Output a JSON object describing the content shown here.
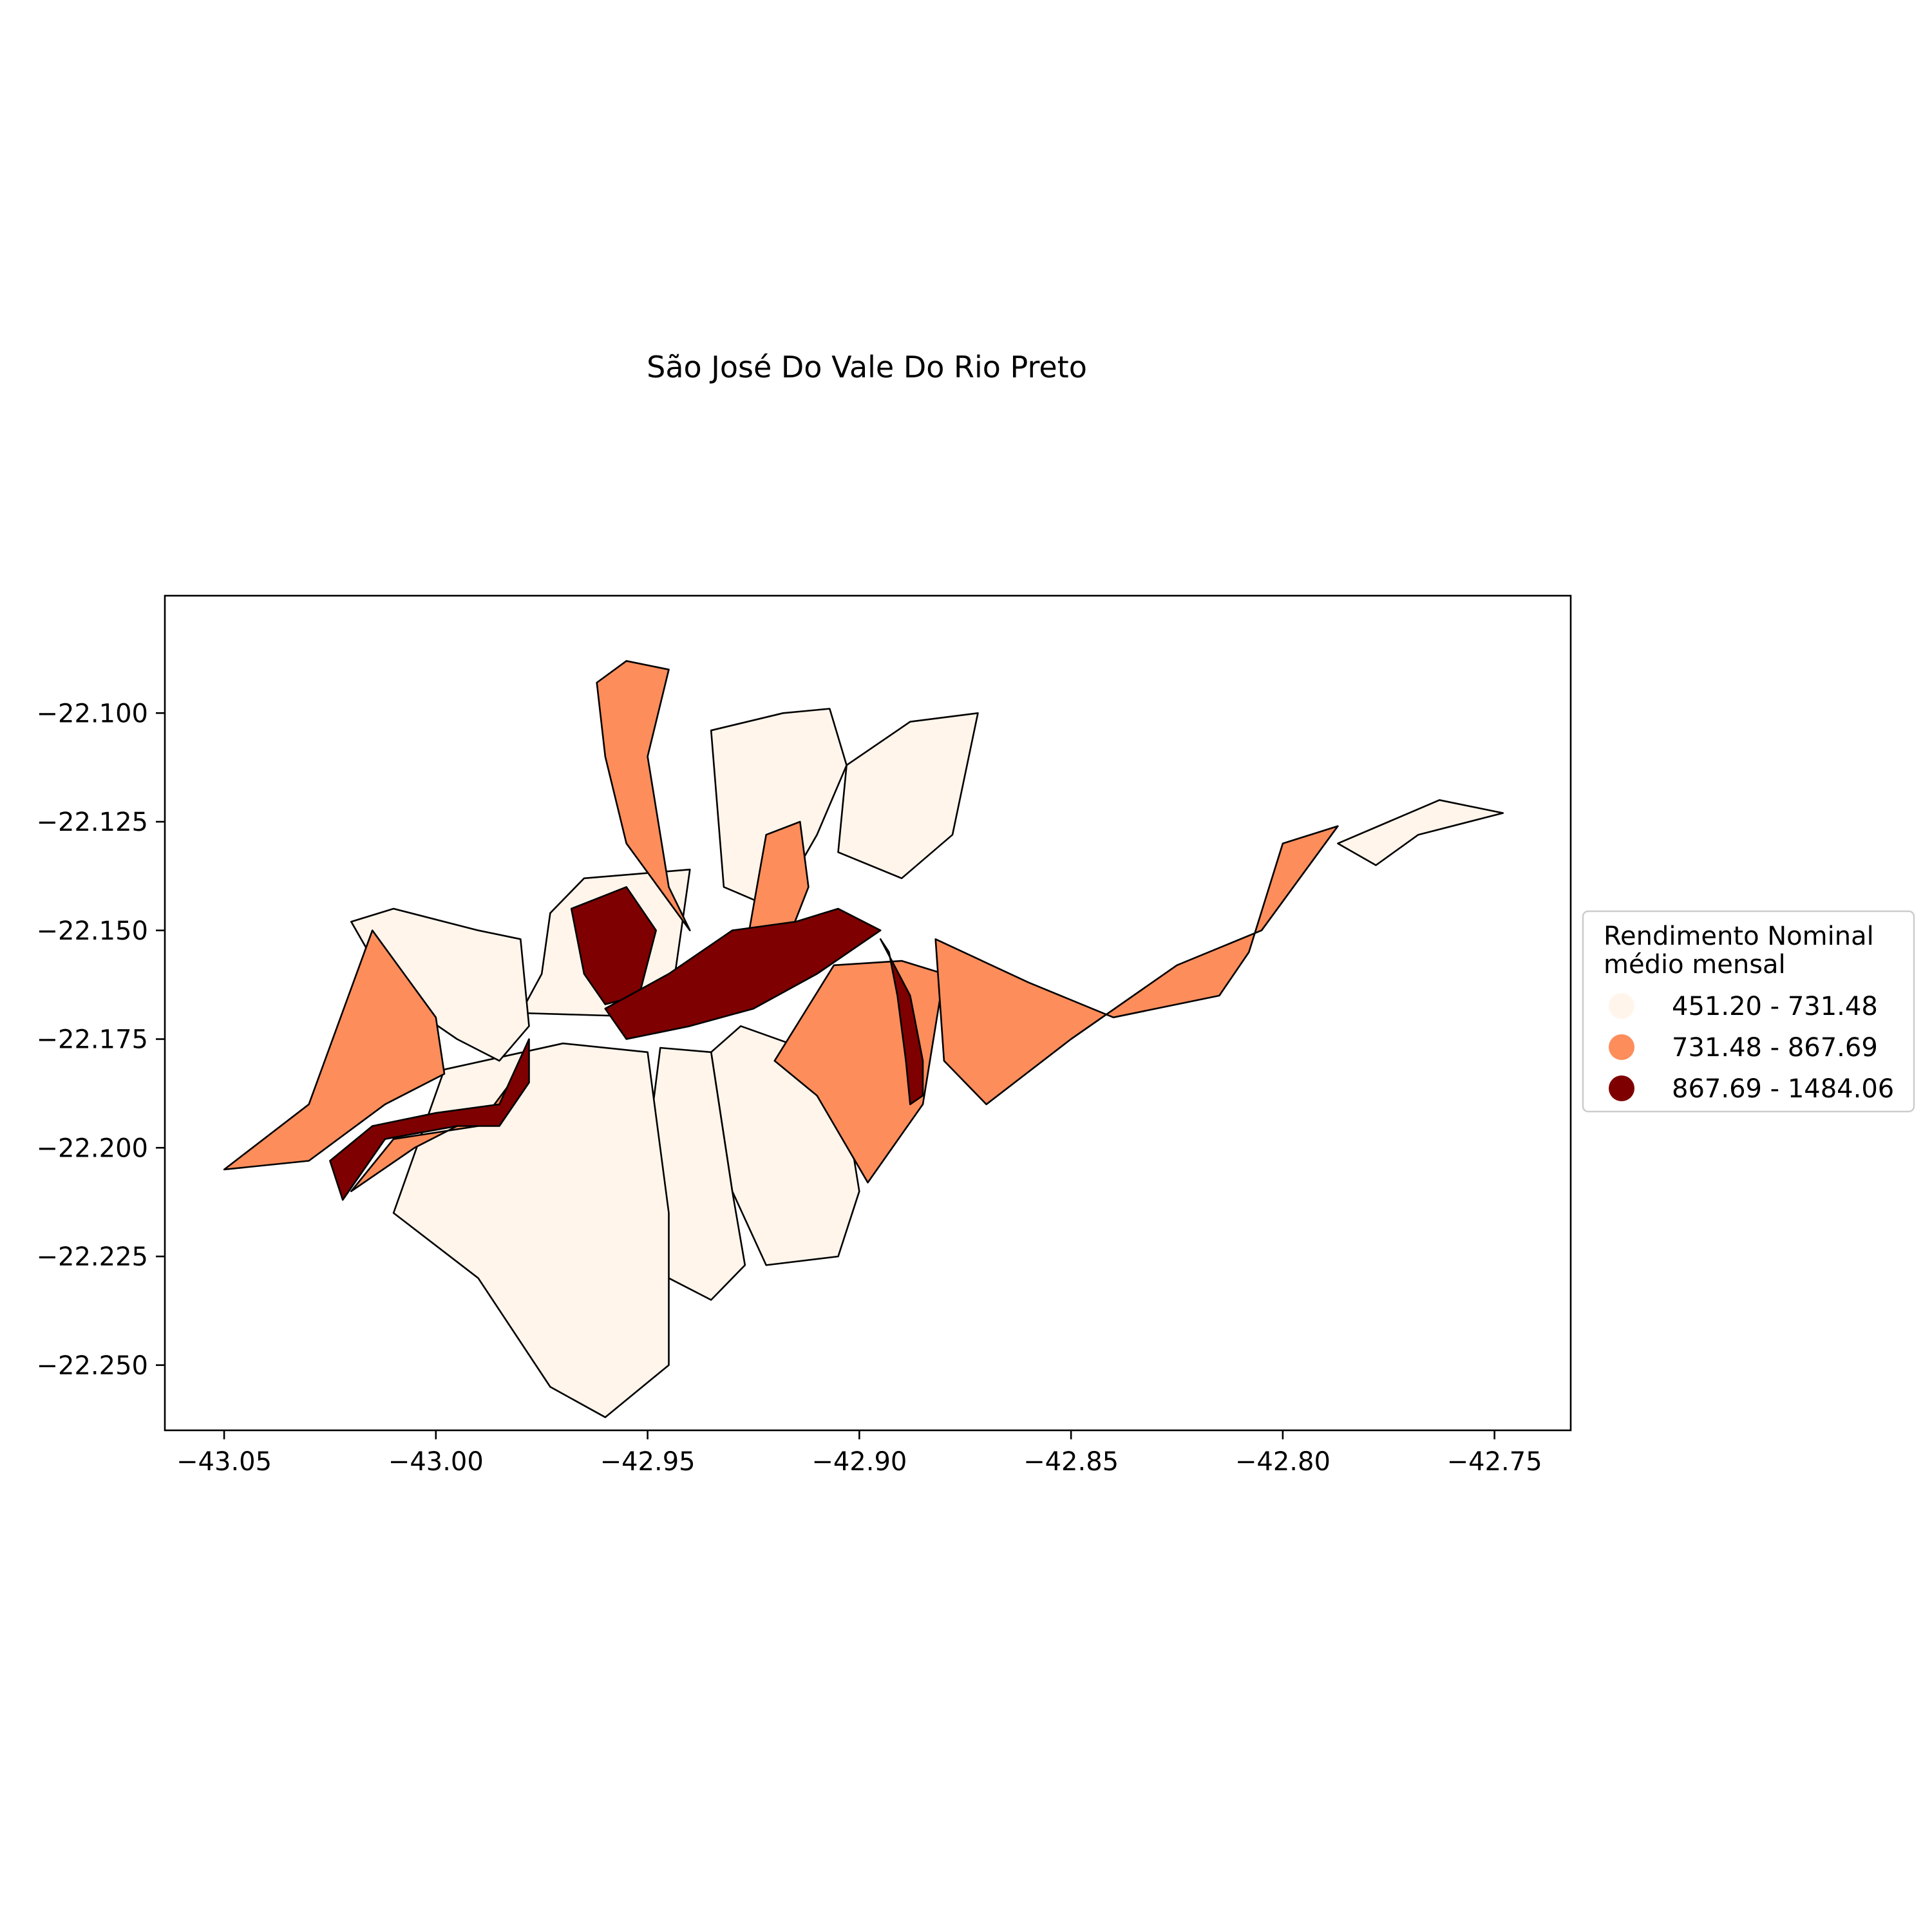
{
  "title": "São José Do Vale Do Rio Preto",
  "legend": {
    "title_line1": "Rendimento Nominal",
    "title_line2": "médio mensal",
    "classes": [
      {
        "label": "451.20 - 731.48",
        "color": "#fff5eb"
      },
      {
        "label": "731.48 - 867.69",
        "color": "#fd8d5b"
      },
      {
        "label": "867.69 - 1484.06",
        "color": "#7f0000"
      }
    ]
  },
  "chart_data": {
    "type": "choropleth",
    "x_ticks": [
      "−43.05",
      "−43.00",
      "−42.95",
      "−42.90",
      "−42.85",
      "−42.80",
      "−42.75"
    ],
    "y_ticks": [
      "−22.100",
      "−22.125",
      "−22.150",
      "−22.175",
      "−22.200",
      "−22.225",
      "−22.250"
    ],
    "xlim": [
      -43.064,
      -42.732
    ],
    "ylim": [
      -22.265,
      -22.073
    ],
    "regions": [
      {
        "class": 0,
        "ring": [
          [
            -42.973,
            -22.146
          ],
          [
            -42.965,
            -22.138
          ],
          [
            -42.94,
            -22.136
          ],
          [
            -42.945,
            -22.17
          ],
          [
            -42.98,
            -22.169
          ],
          [
            -42.975,
            -22.16
          ]
        ]
      },
      {
        "class": 0,
        "ring": [
          [
            -42.935,
            -22.104
          ],
          [
            -42.918,
            -22.1
          ],
          [
            -42.907,
            -22.099
          ],
          [
            -42.903,
            -22.112
          ],
          [
            -42.91,
            -22.128
          ],
          [
            -42.92,
            -22.145
          ],
          [
            -42.932,
            -22.14
          ]
        ]
      },
      {
        "class": 0,
        "ring": [
          [
            -42.903,
            -22.112
          ],
          [
            -42.888,
            -22.102
          ],
          [
            -42.872,
            -22.1
          ],
          [
            -42.878,
            -22.128
          ],
          [
            -42.89,
            -22.138
          ],
          [
            -42.905,
            -22.132
          ]
        ]
      },
      {
        "class": 0,
        "ring": [
          [
            -42.935,
            -22.178
          ],
          [
            -42.928,
            -22.172
          ],
          [
            -42.905,
            -22.18
          ],
          [
            -42.9,
            -22.21
          ],
          [
            -42.905,
            -22.225
          ],
          [
            -42.922,
            -22.227
          ],
          [
            -42.93,
            -22.21
          ]
        ]
      },
      {
        "class": 0,
        "ring": [
          [
            -42.947,
            -22.177
          ],
          [
            -42.935,
            -22.178
          ],
          [
            -42.93,
            -22.21
          ],
          [
            -42.927,
            -22.227
          ],
          [
            -42.935,
            -22.235
          ],
          [
            -42.945,
            -22.23
          ],
          [
            -42.95,
            -22.2
          ]
        ]
      },
      {
        "class": 0,
        "ring": [
          [
            -42.998,
            -22.182
          ],
          [
            -42.97,
            -22.176
          ],
          [
            -42.95,
            -22.178
          ],
          [
            -42.945,
            -22.215
          ],
          [
            -42.945,
            -22.25
          ],
          [
            -42.96,
            -22.262
          ],
          [
            -42.973,
            -22.255
          ],
          [
            -42.99,
            -22.23
          ],
          [
            -43.01,
            -22.215
          ]
        ]
      },
      {
        "class": 0,
        "ring": [
          [
            -42.98,
            -22.152
          ],
          [
            -42.99,
            -22.15
          ],
          [
            -43.01,
            -22.145
          ],
          [
            -43.02,
            -22.148
          ],
          [
            -43.01,
            -22.165
          ],
          [
            -42.995,
            -22.175
          ],
          [
            -42.985,
            -22.18
          ],
          [
            -42.978,
            -22.172
          ]
        ]
      },
      {
        "class": 0,
        "ring": [
          [
            -42.787,
            -22.13
          ],
          [
            -42.775,
            -22.125
          ],
          [
            -42.763,
            -22.12
          ],
          [
            -42.748,
            -22.123
          ],
          [
            -42.768,
            -22.128
          ],
          [
            -42.778,
            -22.135
          ]
        ]
      },
      {
        "class": 1,
        "ring": [
          [
            -42.962,
            -22.093
          ],
          [
            -42.955,
            -22.088
          ],
          [
            -42.945,
            -22.09
          ],
          [
            -42.95,
            -22.11
          ],
          [
            -42.945,
            -22.14
          ],
          [
            -42.94,
            -22.15
          ],
          [
            -42.955,
            -22.13
          ],
          [
            -42.96,
            -22.11
          ]
        ]
      },
      {
        "class": 1,
        "ring": [
          [
            -42.922,
            -22.128
          ],
          [
            -42.914,
            -22.125
          ],
          [
            -42.912,
            -22.14
          ],
          [
            -42.918,
            -22.155
          ],
          [
            -42.926,
            -22.15
          ]
        ]
      },
      {
        "class": 1,
        "ring": [
          [
            -42.906,
            -22.158
          ],
          [
            -42.89,
            -22.157
          ],
          [
            -42.88,
            -22.16
          ],
          [
            -42.885,
            -22.19
          ],
          [
            -42.898,
            -22.208
          ],
          [
            -42.91,
            -22.188
          ],
          [
            -42.92,
            -22.18
          ]
        ]
      },
      {
        "class": 1,
        "ring": [
          [
            -42.882,
            -22.152
          ],
          [
            -42.86,
            -22.162
          ],
          [
            -42.84,
            -22.17
          ],
          [
            -42.815,
            -22.165
          ],
          [
            -42.808,
            -22.155
          ],
          [
            -42.8,
            -22.13
          ],
          [
            -42.787,
            -22.126
          ],
          [
            -42.805,
            -22.15
          ],
          [
            -42.825,
            -22.158
          ],
          [
            -42.85,
            -22.175
          ],
          [
            -42.87,
            -22.19
          ],
          [
            -42.88,
            -22.18
          ]
        ]
      },
      {
        "class": 1,
        "ring": [
          [
            -43.0,
            -22.17
          ],
          [
            -43.015,
            -22.15
          ],
          [
            -43.03,
            -22.19
          ],
          [
            -43.05,
            -22.205
          ],
          [
            -43.03,
            -22.203
          ],
          [
            -43.012,
            -22.19
          ],
          [
            -42.998,
            -22.183
          ]
        ]
      },
      {
        "class": 1,
        "ring": [
          [
            -42.98,
            -22.182
          ],
          [
            -42.99,
            -22.195
          ],
          [
            -43.01,
            -22.198
          ],
          [
            -43.02,
            -22.21
          ],
          [
            -43.005,
            -22.2
          ],
          [
            -42.985,
            -22.19
          ]
        ]
      },
      {
        "class": 2,
        "ring": [
          [
            -42.968,
            -22.145
          ],
          [
            -42.955,
            -22.14
          ],
          [
            -42.948,
            -22.15
          ],
          [
            -42.952,
            -22.165
          ],
          [
            -42.96,
            -22.167
          ],
          [
            -42.965,
            -22.16
          ]
        ]
      },
      {
        "class": 2,
        "ring": [
          [
            -42.96,
            -22.168
          ],
          [
            -42.945,
            -22.16
          ],
          [
            -42.93,
            -22.15
          ],
          [
            -42.915,
            -22.148
          ],
          [
            -42.905,
            -22.145
          ],
          [
            -42.895,
            -22.15
          ],
          [
            -42.91,
            -22.16
          ],
          [
            -42.925,
            -22.168
          ],
          [
            -42.94,
            -22.172
          ],
          [
            -42.955,
            -22.175
          ]
        ]
      },
      {
        "class": 2,
        "ring": [
          [
            -42.978,
            -22.175
          ],
          [
            -42.985,
            -22.19
          ],
          [
            -43.0,
            -22.192
          ],
          [
            -43.015,
            -22.195
          ],
          [
            -43.025,
            -22.203
          ],
          [
            -43.022,
            -22.212
          ],
          [
            -43.012,
            -22.198
          ],
          [
            -42.995,
            -22.195
          ],
          [
            -42.985,
            -22.195
          ],
          [
            -42.978,
            -22.185
          ]
        ]
      },
      {
        "class": 2,
        "ring": [
          [
            -42.895,
            -22.152
          ],
          [
            -42.888,
            -22.165
          ],
          [
            -42.885,
            -22.18
          ],
          [
            -42.885,
            -22.188
          ],
          [
            -42.888,
            -22.19
          ],
          [
            -42.889,
            -22.18
          ],
          [
            -42.891,
            -22.165
          ],
          [
            -42.893,
            -22.155
          ]
        ]
      }
    ]
  }
}
